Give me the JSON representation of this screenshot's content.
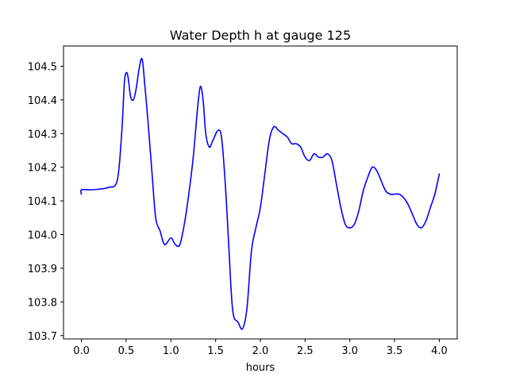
{
  "chart_data": {
    "type": "line",
    "title": "Water Depth h at gauge 125",
    "xlabel": "hours",
    "ylabel": "",
    "xlim": [
      -0.2,
      4.2
    ],
    "ylim": [
      103.69,
      104.56
    ],
    "xticks": [
      0.0,
      0.5,
      1.0,
      1.5,
      2.0,
      2.5,
      3.0,
      3.5,
      4.0
    ],
    "xtick_labels": [
      "0.0",
      "0.5",
      "1.0",
      "1.5",
      "2.0",
      "2.5",
      "3.0",
      "3.5",
      "4.0"
    ],
    "yticks": [
      103.7,
      103.8,
      103.9,
      104.0,
      104.1,
      104.2,
      104.3,
      104.4,
      104.5
    ],
    "ytick_labels": [
      "103.7",
      "103.8",
      "103.9",
      "104.0",
      "104.1",
      "104.2",
      "104.3",
      "104.4",
      "104.5"
    ],
    "grid": false,
    "legend": "none",
    "series": [
      {
        "color": "#0000ff",
        "x": [
          0.0,
          0.0,
          0.1,
          0.2,
          0.3,
          0.4,
          0.45,
          0.48,
          0.5,
          0.52,
          0.55,
          0.58,
          0.61,
          0.65,
          0.68,
          0.71,
          0.74,
          0.79,
          0.83,
          0.88,
          0.93,
          1.0,
          1.05,
          1.1,
          1.15,
          1.2,
          1.25,
          1.3,
          1.33,
          1.36,
          1.39,
          1.43,
          1.47,
          1.53,
          1.57,
          1.62,
          1.67,
          1.7,
          1.75,
          1.8,
          1.85,
          1.9,
          1.95,
          2.0,
          2.05,
          2.1,
          2.15,
          2.2,
          2.25,
          2.3,
          2.35,
          2.4,
          2.45,
          2.5,
          2.55,
          2.6,
          2.65,
          2.7,
          2.75,
          2.8,
          2.85,
          2.9,
          2.95,
          3.0,
          3.05,
          3.1,
          3.15,
          3.2,
          3.25,
          3.3,
          3.35,
          3.4,
          3.45,
          3.5,
          3.55,
          3.6,
          3.65,
          3.7,
          3.75,
          3.8,
          3.85,
          3.9,
          3.95,
          4.0
        ],
        "y": [
          104.12,
          104.133,
          104.133,
          104.135,
          104.14,
          104.16,
          104.3,
          104.45,
          104.48,
          104.47,
          104.41,
          104.4,
          104.43,
          104.5,
          104.52,
          104.44,
          104.35,
          104.18,
          104.05,
          104.01,
          103.97,
          103.99,
          103.97,
          103.97,
          104.03,
          104.12,
          104.23,
          104.38,
          104.44,
          104.4,
          104.3,
          104.26,
          104.28,
          104.31,
          104.28,
          104.1,
          103.85,
          103.76,
          103.74,
          103.72,
          103.78,
          103.95,
          104.02,
          104.08,
          104.18,
          104.28,
          104.32,
          104.31,
          104.3,
          104.29,
          104.27,
          104.27,
          104.26,
          104.23,
          104.22,
          104.24,
          104.23,
          104.23,
          104.24,
          104.22,
          104.15,
          104.08,
          104.03,
          104.02,
          104.03,
          104.07,
          104.13,
          104.17,
          104.2,
          104.19,
          104.16,
          104.13,
          104.12,
          104.12,
          104.12,
          104.11,
          104.09,
          104.06,
          104.03,
          104.02,
          104.04,
          104.08,
          104.12,
          104.18
        ]
      }
    ]
  }
}
